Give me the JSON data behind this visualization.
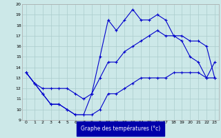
{
  "xlabel": "Graphe des températures (°c)",
  "bg_color": "#cce8e8",
  "line_color": "#0000cc",
  "hours": [
    0,
    1,
    2,
    3,
    4,
    5,
    6,
    7,
    8,
    9,
    10,
    11,
    12,
    13,
    14,
    15,
    16,
    17,
    18,
    19,
    20,
    21,
    22,
    23
  ],
  "temp_max": [
    13.5,
    12.5,
    11.5,
    10.5,
    10.5,
    10.0,
    9.5,
    9.5,
    11.5,
    15.0,
    18.5,
    17.5,
    18.5,
    19.5,
    18.5,
    18.5,
    19.0,
    18.5,
    17.0,
    16.5,
    15.0,
    14.5,
    13.0,
    14.5
  ],
  "temp_mean": [
    13.5,
    12.5,
    12.0,
    12.0,
    12.0,
    12.0,
    11.5,
    11.0,
    11.5,
    13.0,
    14.5,
    14.5,
    15.5,
    16.0,
    16.5,
    17.0,
    17.5,
    17.0,
    17.0,
    17.0,
    16.5,
    16.5,
    16.0,
    13.0
  ],
  "temp_min": [
    13.5,
    12.5,
    11.5,
    10.5,
    10.5,
    10.0,
    9.5,
    9.5,
    9.5,
    10.0,
    11.5,
    11.5,
    12.0,
    12.5,
    13.0,
    13.0,
    13.0,
    13.0,
    13.5,
    13.5,
    13.5,
    13.5,
    13.0,
    13.0
  ],
  "ylim": [
    9,
    20
  ],
  "xlim": [
    -0.5,
    23.5
  ],
  "yticks": [
    9,
    10,
    11,
    12,
    13,
    14,
    15,
    16,
    17,
    18,
    19,
    20
  ],
  "xticks": [
    0,
    1,
    2,
    3,
    4,
    5,
    6,
    7,
    8,
    9,
    10,
    11,
    12,
    13,
    14,
    15,
    16,
    17,
    18,
    19,
    20,
    21,
    22,
    23
  ],
  "grid_color": "#aacccc",
  "xlabel_color": "#ffffff",
  "xlabel_bg": "#0000aa",
  "marker": "+",
  "marker_size": 3,
  "linewidth": 0.8
}
